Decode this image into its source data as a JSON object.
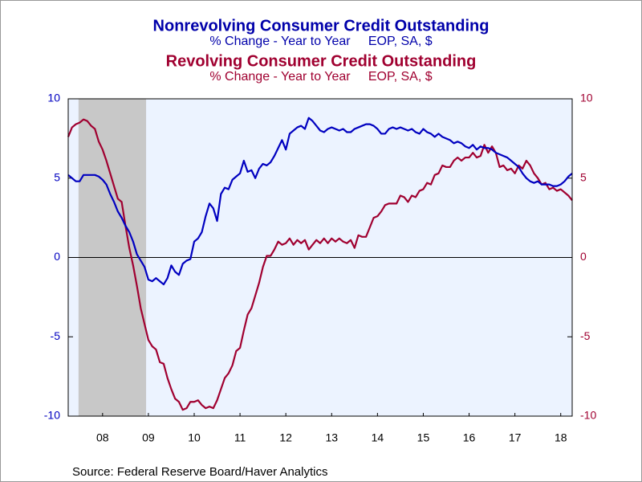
{
  "chart_data": {
    "type": "line",
    "source": "Source:  Federal Reserve Board/Haver Analytics",
    "categories": [
      null,
      null,
      null,
      null,
      null,
      null,
      null,
      null,
      null,
      "08",
      null,
      null,
      null,
      null,
      null,
      null,
      null,
      null,
      null,
      null,
      null,
      "09",
      null,
      null,
      null,
      null,
      null,
      null,
      null,
      null,
      null,
      null,
      null,
      "10",
      null,
      null,
      null,
      null,
      null,
      null,
      null,
      null,
      null,
      null,
      null,
      "11",
      null,
      null,
      null,
      null,
      null,
      null,
      null,
      null,
      null,
      null,
      null,
      "12",
      null,
      null,
      null,
      null,
      null,
      null,
      null,
      null,
      null,
      null,
      null,
      "13",
      null,
      null,
      null,
      null,
      null,
      null,
      null,
      null,
      null,
      null,
      null,
      "14",
      null,
      null,
      null,
      null,
      null,
      null,
      null,
      null,
      null,
      null,
      null,
      "15",
      null,
      null,
      null,
      null,
      null,
      null,
      null,
      null,
      null,
      null,
      null,
      "16",
      null,
      null,
      null,
      null,
      null,
      null,
      null,
      null,
      null,
      null,
      null,
      "17",
      null,
      null,
      null,
      null,
      null,
      null,
      null,
      null,
      null,
      null,
      null,
      "18",
      null,
      null,
      null
    ],
    "recession": {
      "start": 2.7,
      "end": 20.4,
      "color": "#c8c8c8"
    },
    "ylim": [
      -10,
      10
    ],
    "yticks": [
      -10,
      -5,
      0,
      5,
      10
    ],
    "y2lim": [
      -10,
      10
    ],
    "y2ticks": [
      -10,
      -5,
      0,
      5,
      10
    ],
    "series": [
      {
        "name": "Nonrevolving Consumer Credit Outstanding",
        "subtitle": "% Change - Year to Year     EOP, SA, $",
        "color": "#0000c0",
        "axis": "y",
        "values": [
          5.2,
          5.0,
          4.8,
          4.8,
          5.2,
          5.2,
          5.2,
          5.2,
          5.1,
          4.9,
          4.6,
          4.0,
          3.5,
          2.9,
          2.5,
          2.0,
          1.6,
          1.0,
          0.2,
          -0.2,
          -0.6,
          -1.4,
          -1.5,
          -1.3,
          -1.5,
          -1.7,
          -1.3,
          -0.5,
          -0.9,
          -1.1,
          -0.4,
          -0.2,
          -0.1,
          1.0,
          1.2,
          1.6,
          2.6,
          3.4,
          3.1,
          2.3,
          4.0,
          4.4,
          4.3,
          4.9,
          5.1,
          5.3,
          6.1,
          5.4,
          5.5,
          5.0,
          5.6,
          5.9,
          5.8,
          6.0,
          6.4,
          6.9,
          7.4,
          6.8,
          7.8,
          8.0,
          8.2,
          8.3,
          8.1,
          8.8,
          8.6,
          8.3,
          8.0,
          7.9,
          8.1,
          8.2,
          8.1,
          8.0,
          8.1,
          7.9,
          7.9,
          8.1,
          8.2,
          8.3,
          8.4,
          8.4,
          8.3,
          8.1,
          7.8,
          7.8,
          8.1,
          8.2,
          8.1,
          8.2,
          8.1,
          8.0,
          8.1,
          7.9,
          7.8,
          8.1,
          7.9,
          7.8,
          7.6,
          7.8,
          7.6,
          7.5,
          7.4,
          7.2,
          7.3,
          7.2,
          7.0,
          6.9,
          7.1,
          6.8,
          7.0,
          6.9,
          6.9,
          6.8,
          6.6,
          6.5,
          6.4,
          6.3,
          6.1,
          5.9,
          5.7,
          5.3,
          5.0,
          4.8,
          4.7,
          4.8,
          4.6,
          4.6,
          4.6,
          4.5,
          4.5,
          4.6,
          4.8,
          5.1,
          5.3
        ]
      },
      {
        "name": "Revolving Consumer Credit Outstanding",
        "subtitle": "% Change - Year to Year     EOP, SA, $",
        "color": "#a00030",
        "axis": "y2",
        "values": [
          7.6,
          8.2,
          8.4,
          8.5,
          8.7,
          8.6,
          8.3,
          8.1,
          7.3,
          6.8,
          6.1,
          5.3,
          4.5,
          3.7,
          3.5,
          2.0,
          0.6,
          -0.5,
          -1.8,
          -3.2,
          -4.2,
          -5.2,
          -5.6,
          -5.8,
          -6.6,
          -6.7,
          -7.6,
          -8.3,
          -8.9,
          -9.1,
          -9.6,
          -9.5,
          -9.1,
          -9.1,
          -9.0,
          -9.3,
          -9.5,
          -9.4,
          -9.5,
          -9.0,
          -8.3,
          -7.6,
          -7.3,
          -6.8,
          -5.9,
          -5.7,
          -4.6,
          -3.6,
          -3.2,
          -2.4,
          -1.6,
          -0.6,
          0.1,
          0.1,
          0.5,
          1.0,
          0.8,
          0.9,
          1.2,
          0.8,
          1.1,
          0.9,
          1.1,
          0.5,
          0.8,
          1.1,
          0.9,
          1.2,
          0.9,
          1.2,
          1.0,
          1.2,
          1.0,
          0.9,
          1.1,
          0.6,
          1.4,
          1.3,
          1.3,
          1.9,
          2.5,
          2.6,
          2.9,
          3.3,
          3.4,
          3.4,
          3.4,
          3.9,
          3.8,
          3.5,
          3.9,
          3.8,
          4.2,
          4.3,
          4.7,
          4.6,
          5.2,
          5.3,
          5.8,
          5.7,
          5.7,
          6.1,
          6.3,
          6.1,
          6.3,
          6.3,
          6.6,
          6.3,
          6.4,
          7.1,
          6.6,
          7.0,
          6.6,
          5.7,
          5.8,
          5.5,
          5.6,
          5.3,
          5.8,
          5.6,
          6.1,
          5.8,
          5.3,
          5.0,
          4.6,
          4.7,
          4.3,
          4.4,
          4.2,
          4.3,
          4.1,
          3.9,
          3.6
        ]
      }
    ],
    "zero_line": true,
    "background": "#ecf3ff"
  }
}
